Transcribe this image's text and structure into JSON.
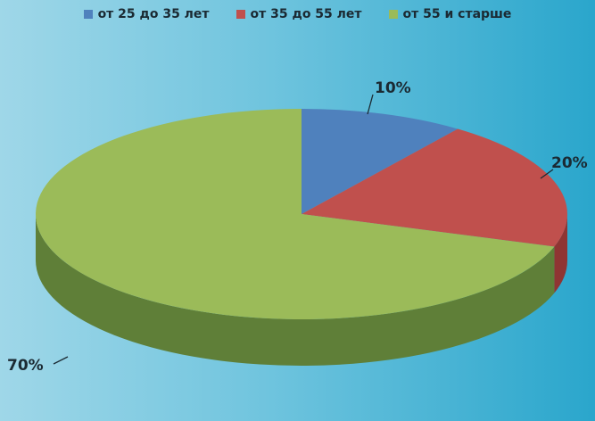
{
  "chart_data": {
    "type": "pie",
    "three_d": true,
    "legend_position": "top",
    "categories": [
      "от 25 до 35 лет",
      "от 35 до 55 лет",
      "от 55 и старше"
    ],
    "values": [
      10,
      20,
      70
    ],
    "data_labels": [
      "10%",
      "20%",
      "70%"
    ],
    "colors": [
      "#4f81bd",
      "#c0504d",
      "#9bbb59"
    ],
    "side_colors": [
      "#2f5a8a",
      "#8f3533",
      "#5f7f38"
    ]
  }
}
